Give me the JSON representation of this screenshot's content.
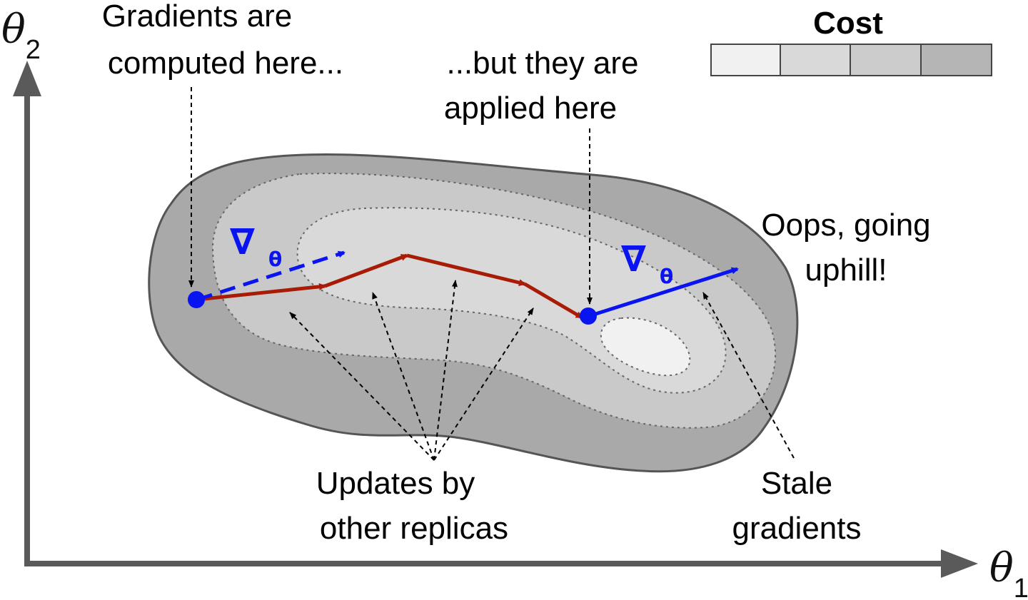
{
  "axes": {
    "y_symbol": "θ",
    "y_subscript": "2",
    "x_symbol": "θ",
    "x_subscript": "1"
  },
  "legend": {
    "title": "Cost",
    "swatches": [
      "#f1f1f1",
      "#d9d9d9",
      "#cccccc",
      "#b5b5b5"
    ]
  },
  "labels": {
    "gradients_computed_line1": "Gradients are",
    "gradients_computed_line2": "computed here...",
    "applied_line1": "...but they are",
    "applied_line2": "applied here",
    "oops_line1": "Oops, going",
    "oops_line2": "uphill!",
    "updates_line1": "Updates by",
    "updates_line2": "other replicas",
    "stale_line1": "Stale",
    "stale_line2": "gradients"
  },
  "gradient_symbols": {
    "nabla": "∇",
    "theta": "θ"
  },
  "colors": {
    "blue": "#0a14f0",
    "red": "#a81c06",
    "outer_region": "#a9a9a9",
    "middle_region": "#c9c9c9",
    "inner_region": "#d9d9d9",
    "minimum_region": "#f1f1f1",
    "axis": "#5a5a5a"
  }
}
